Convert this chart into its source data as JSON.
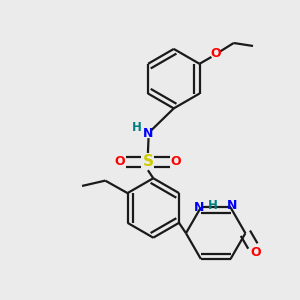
{
  "background_color": "#ebebeb",
  "bond_color": "#1a1a1a",
  "colors": {
    "N": "#0000ff",
    "O": "#ff0000",
    "S": "#cccc00",
    "H": "#008080",
    "C": "#1a1a1a"
  },
  "figsize": [
    3.0,
    3.0
  ],
  "dpi": 100
}
